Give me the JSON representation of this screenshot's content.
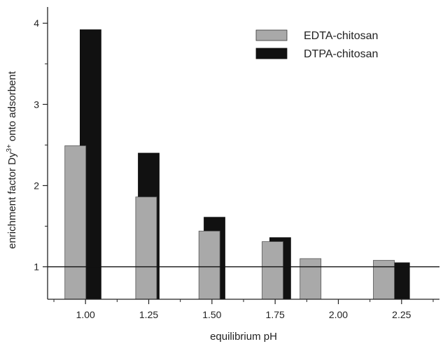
{
  "chart_data": {
    "type": "bar",
    "xlabel": "equilibrium pH",
    "ylabel_main": "enrichment factor Dy",
    "ylabel_sup": "3+",
    "ylabel_rest": " onto adsorbent",
    "xlim": [
      0.85,
      2.4
    ],
    "ylim": [
      0.6,
      4.2
    ],
    "x_ticks": [
      "1.00",
      "1.25",
      "1.50",
      "1.75",
      "2.00",
      "2.25"
    ],
    "x_tick_values": [
      1.0,
      1.25,
      1.5,
      1.75,
      2.0,
      2.25
    ],
    "y_ticks": [
      "1",
      "2",
      "3",
      "4"
    ],
    "y_tick_values": [
      1,
      2,
      3,
      4
    ],
    "reference_line": 1,
    "legend_position": "top-right",
    "series": [
      {
        "name": "EDTA-chitosan",
        "color": "#a9a9a9",
        "x": [
          0.96,
          1.24,
          1.49,
          1.74,
          1.89,
          2.18
        ],
        "values": [
          2.49,
          1.86,
          1.44,
          1.31,
          1.1,
          1.08
        ]
      },
      {
        "name": "DTPA-chitosan",
        "color": "#111111",
        "x": [
          1.02,
          1.25,
          1.51,
          1.77,
          null,
          2.24
        ],
        "values": [
          3.92,
          2.4,
          1.61,
          1.36,
          null,
          1.05
        ]
      }
    ]
  }
}
